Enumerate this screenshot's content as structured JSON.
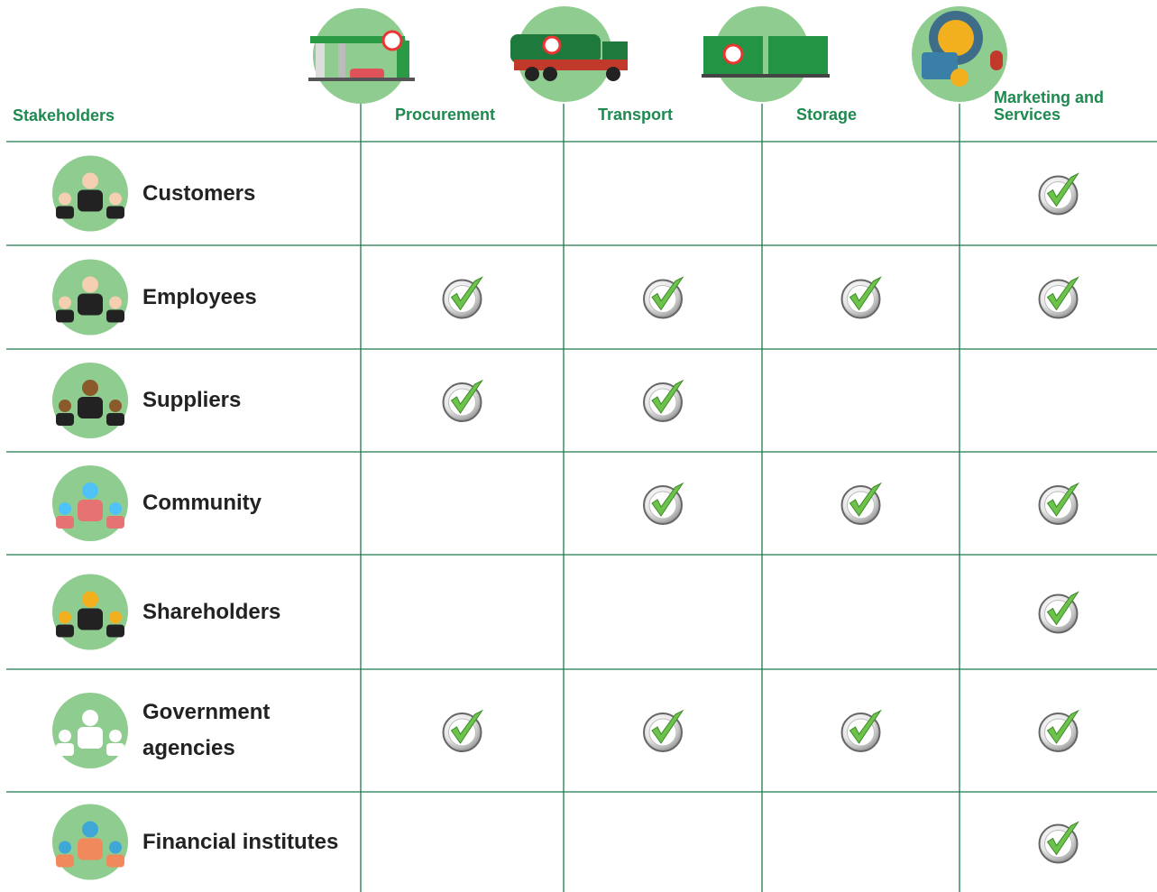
{
  "header": {
    "stakeholders": "Stakeholders",
    "columns": [
      "Procurement",
      "Transport",
      "Storage",
      "Marketing and Services"
    ]
  },
  "rows": [
    {
      "name": [
        "Customers"
      ],
      "checks": [
        false,
        false,
        false,
        true
      ]
    },
    {
      "name": [
        "Employees"
      ],
      "checks": [
        true,
        true,
        true,
        true
      ]
    },
    {
      "name": [
        "Suppliers"
      ],
      "checks": [
        true,
        true,
        false,
        false
      ]
    },
    {
      "name": [
        "Community"
      ],
      "checks": [
        false,
        true,
        true,
        true
      ]
    },
    {
      "name": [
        "Shareholders"
      ],
      "checks": [
        false,
        false,
        false,
        true
      ]
    },
    {
      "name": [
        "Government",
        "agencies"
      ],
      "checks": [
        true,
        true,
        true,
        true
      ]
    },
    {
      "name": [
        "Financial institutes"
      ],
      "checks": [
        false,
        false,
        false,
        true
      ]
    }
  ]
}
